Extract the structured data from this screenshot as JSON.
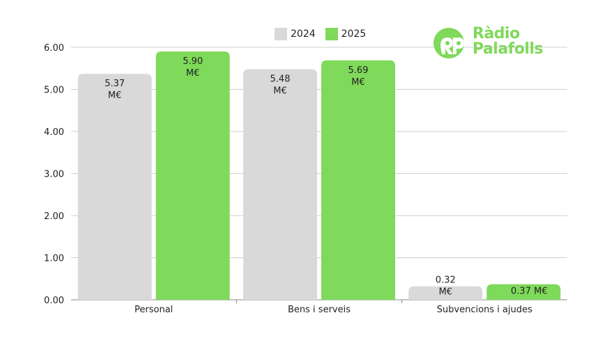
{
  "brand": {
    "logo_line1": "Ràdio",
    "logo_line2": "Palafolls",
    "accent_color": "#7fd95a"
  },
  "chart_data": {
    "type": "bar",
    "categories": [
      "Personal",
      "Bens i serveis",
      "Subvencions i ajudes"
    ],
    "series": [
      {
        "name": "2024",
        "color": "#d9d9d9",
        "values": [
          5.37,
          5.48,
          0.32
        ]
      },
      {
        "name": "2025",
        "color": "#7fd95a",
        "values": [
          5.9,
          5.69,
          0.37
        ]
      }
    ],
    "value_labels": [
      [
        "5.37 M€",
        "5.48 M€",
        "0.32 M€"
      ],
      [
        "5.90 M€",
        "5.69 M€",
        "0.37 M€"
      ]
    ],
    "y_ticks": [
      "0.00",
      "1.00",
      "2.00",
      "3.00",
      "4.00",
      "5.00",
      "6.00"
    ],
    "ylim": [
      0,
      6
    ],
    "grid": true,
    "legend_position": "top-center"
  }
}
